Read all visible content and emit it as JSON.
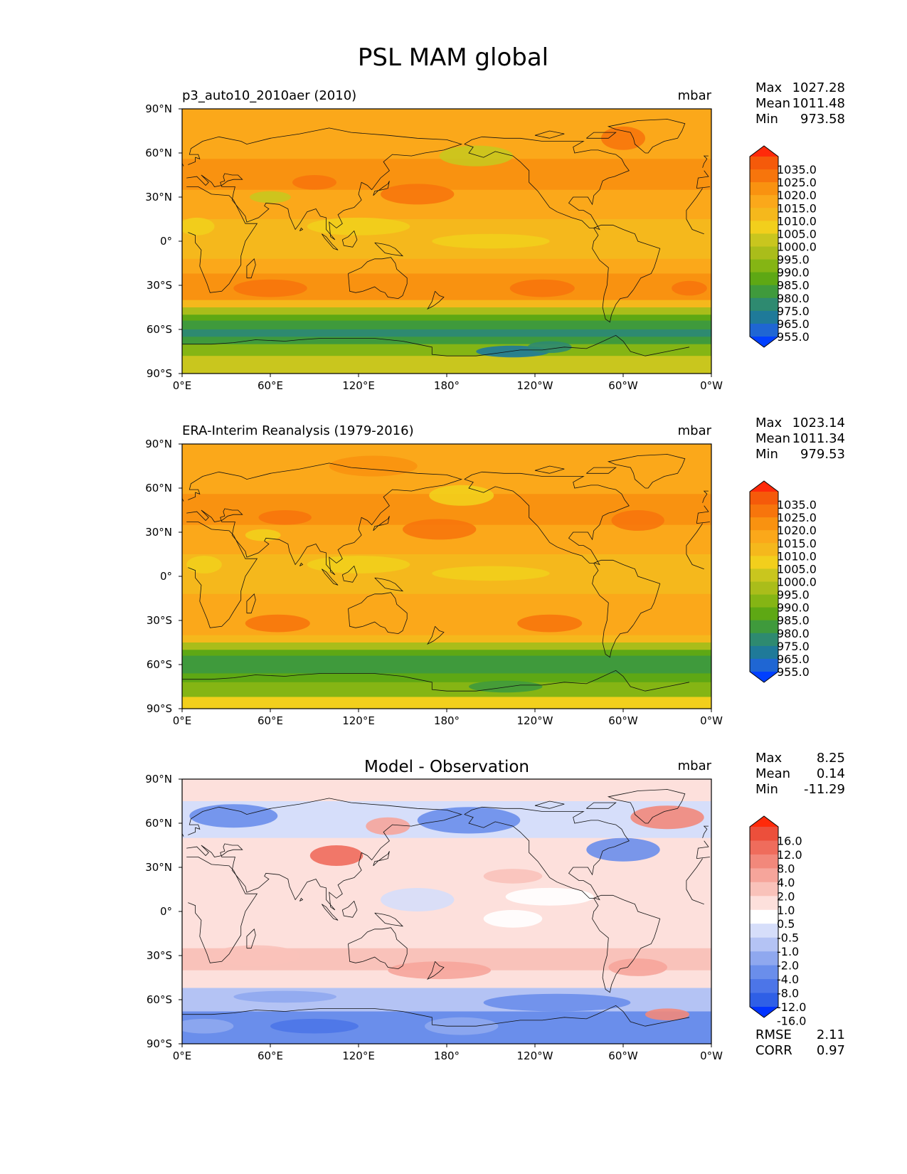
{
  "title": "PSL MAM global",
  "colors": {
    "abs_scale": [
      "#0040ff",
      "#1f66d3",
      "#1f7a99",
      "#2e8a70",
      "#3f9a3c",
      "#5ea814",
      "#85b514",
      "#aabd1a",
      "#c9c61e",
      "#f2cf1c",
      "#f5b81c",
      "#fba81a",
      "#f99210",
      "#f7750c",
      "#f55a0a",
      "#ff2a0a"
    ],
    "diff_scale": [
      "#0033ff",
      "#2f5fe6",
      "#4c75e8",
      "#6a8eeb",
      "#8fa8ef",
      "#b4c3f4",
      "#d6defa",
      "#ffffff",
      "#fde0dc",
      "#f9c2ba",
      "#f6a59b",
      "#f2887b",
      "#ef6c5c",
      "#ec4f3b",
      "#ff2a0a"
    ]
  },
  "chart_data": [
    {
      "type": "heatmap",
      "name": "model",
      "subtitle": "p3_auto10_2010aer (2010)",
      "units": "mbar",
      "stats": {
        "max_label": "Max",
        "max": "1027.28",
        "mean_label": "Mean",
        "mean": "1011.48",
        "min_label": "Min",
        "min": "973.58"
      },
      "x_ticks": [
        "0°E",
        "60°E",
        "120°E",
        "180°",
        "120°W",
        "60°W",
        "0°W"
      ],
      "y_ticks": [
        "90°N",
        "60°N",
        "30°N",
        "0°",
        "30°S",
        "60°S",
        "90°S"
      ],
      "xlim": [
        0,
        360
      ],
      "ylim": [
        -90,
        90
      ],
      "colorbar_levels": [
        "1035.0",
        "1025.0",
        "1020.0",
        "1015.0",
        "1010.0",
        "1005.0",
        "1000.0",
        "995.0",
        "990.0",
        "985.0",
        "980.0",
        "975.0",
        "965.0",
        "955.0"
      ],
      "colorbar_extend": "both"
    },
    {
      "type": "heatmap",
      "name": "observation",
      "subtitle": "ERA-Interim Reanalysis (1979-2016)",
      "units": "mbar",
      "stats": {
        "max_label": "Max",
        "max": "1023.14",
        "mean_label": "Mean",
        "mean": "1011.34",
        "min_label": "Min",
        "min": "979.53"
      },
      "x_ticks": [
        "0°E",
        "60°E",
        "120°E",
        "180°",
        "120°W",
        "60°W",
        "0°W"
      ],
      "y_ticks": [
        "90°N",
        "60°N",
        "30°N",
        "0°",
        "30°S",
        "60°S",
        "90°S"
      ],
      "xlim": [
        0,
        360
      ],
      "ylim": [
        -90,
        90
      ],
      "colorbar_levels": [
        "1035.0",
        "1025.0",
        "1020.0",
        "1015.0",
        "1010.0",
        "1005.0",
        "1000.0",
        "995.0",
        "990.0",
        "985.0",
        "980.0",
        "975.0",
        "965.0",
        "955.0"
      ],
      "colorbar_extend": "both"
    },
    {
      "type": "heatmap",
      "name": "difference",
      "subtitle": "Model - Observation",
      "units": "mbar",
      "stats": {
        "max_label": "Max",
        "max": "8.25",
        "mean_label": "Mean",
        "mean": "0.14",
        "min_label": "Min",
        "min": "-11.29"
      },
      "x_ticks": [
        "0°E",
        "60°E",
        "120°E",
        "180°",
        "120°W",
        "60°W",
        "0°W"
      ],
      "y_ticks": [
        "90°N",
        "60°N",
        "30°N",
        "0°",
        "30°S",
        "60°S",
        "90°S"
      ],
      "xlim": [
        0,
        360
      ],
      "ylim": [
        -90,
        90
      ],
      "colorbar_levels": [
        "16.0",
        "12.0",
        "8.0",
        "4.0",
        "2.0",
        "1.0",
        "0.5",
        "-0.5",
        "-1.0",
        "-2.0",
        "-4.0",
        "-8.0",
        "-12.0",
        "-16.0"
      ],
      "colorbar_extend": "both",
      "metrics": {
        "rmse_label": "RMSE",
        "rmse": "2.11",
        "corr_label": "CORR",
        "corr": "0.97"
      }
    }
  ]
}
